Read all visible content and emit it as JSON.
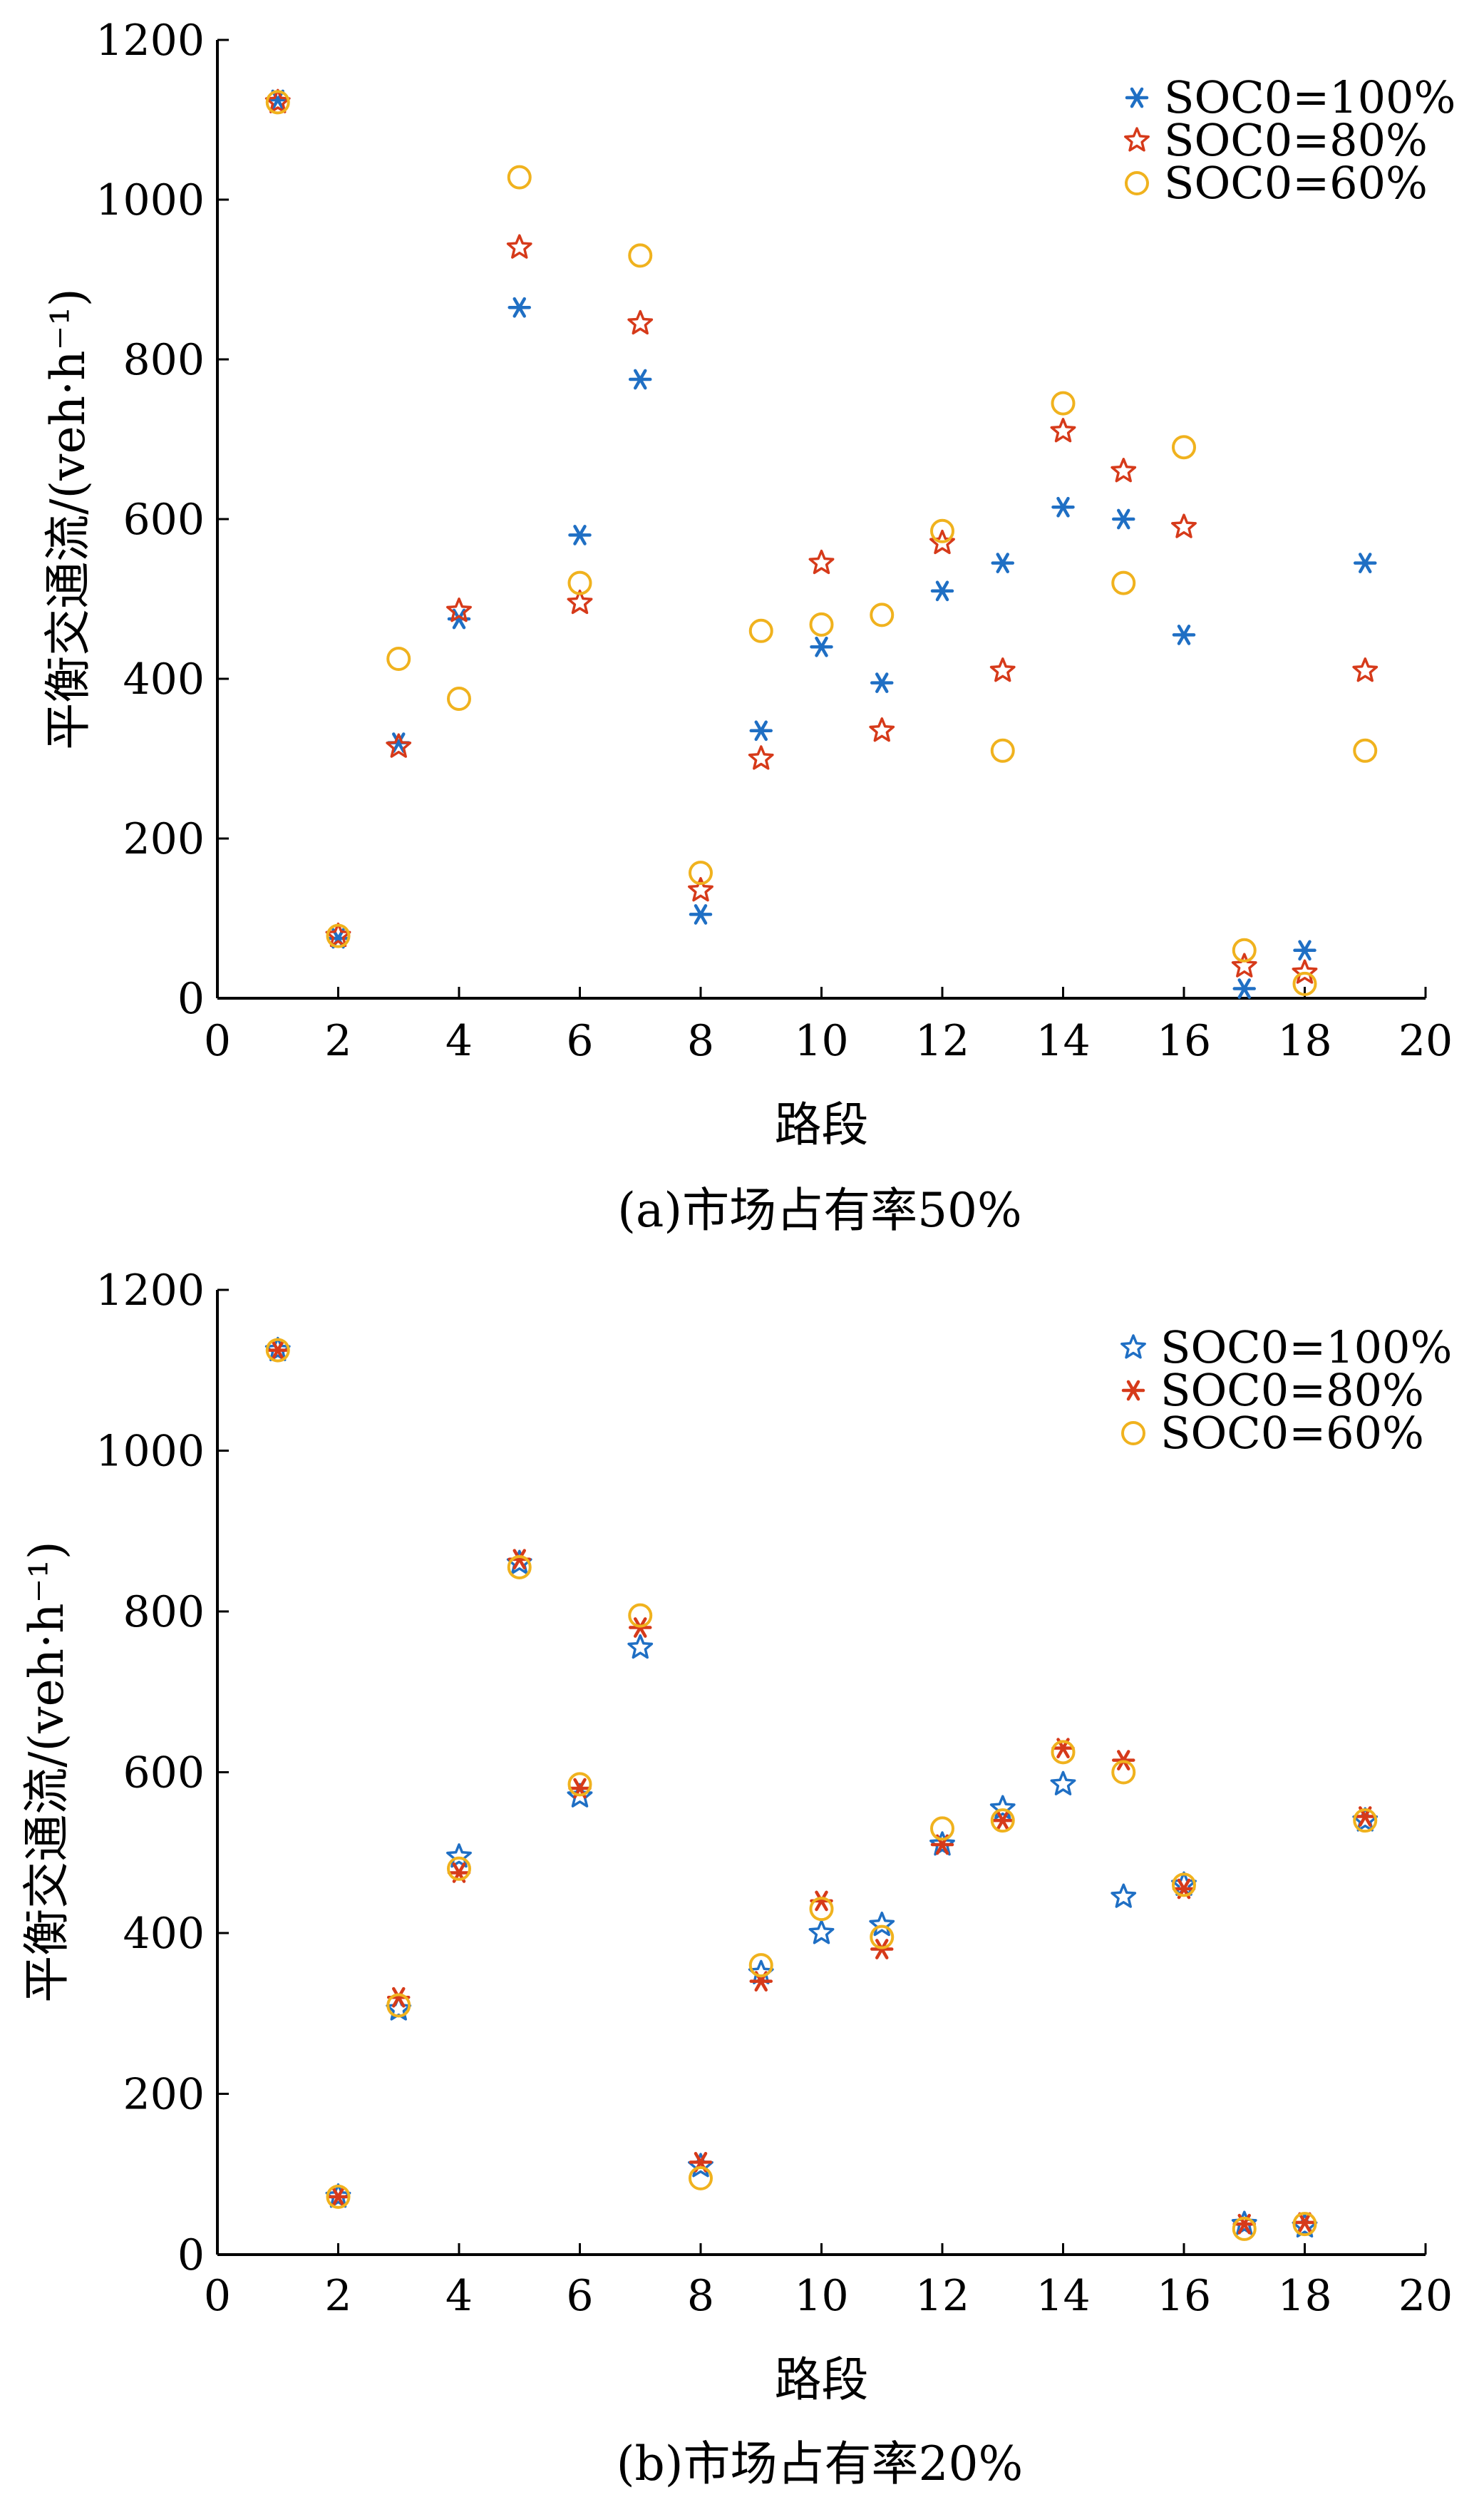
{
  "colors": {
    "blue": "#1f6fc4",
    "red": "#d63a1a",
    "orange": "#f0b21e",
    "axis": "#000000"
  },
  "chart_data": [
    {
      "type": "scatter",
      "caption": "(a)市场占有率50%",
      "xlabel": "路段",
      "ylabel": "平衡交通流/(veh·h⁻¹)",
      "xlim": [
        0,
        20
      ],
      "ylim": [
        0,
        1200
      ],
      "xticks": [
        "0",
        "2",
        "4",
        "6",
        "8",
        "10",
        "12",
        "14",
        "16",
        "18",
        "20"
      ],
      "yticks": [
        "0",
        "200",
        "400",
        "600",
        "800",
        "1000",
        "1200"
      ],
      "legend_position": "top-right",
      "x": [
        1,
        2,
        3,
        4,
        5,
        6,
        7,
        8,
        9,
        10,
        11,
        12,
        13,
        14,
        15,
        16,
        17,
        18,
        19
      ],
      "series": [
        {
          "name": "SOC0=100%",
          "marker": "asterisk",
          "color": "#1f6fc4",
          "values": [
            1125,
            75,
            320,
            475,
            865,
            580,
            775,
            105,
            335,
            440,
            395,
            510,
            545,
            615,
            600,
            455,
            12,
            60,
            545
          ]
        },
        {
          "name": "SOC0=80%",
          "marker": "star",
          "color": "#d63a1a",
          "values": [
            1122,
            78,
            315,
            485,
            940,
            495,
            845,
            135,
            300,
            545,
            335,
            570,
            410,
            710,
            660,
            590,
            40,
            32,
            410
          ]
        },
        {
          "name": "SOC0=60%",
          "marker": "circle",
          "color": "#f0b21e",
          "values": [
            1122,
            78,
            425,
            375,
            1028,
            520,
            930,
            157,
            460,
            468,
            480,
            585,
            310,
            745,
            520,
            690,
            60,
            18,
            310
          ]
        }
      ]
    },
    {
      "type": "scatter",
      "caption": "(b)市场占有率20%",
      "xlabel": "路段",
      "ylabel": "平衡交通流/(veh·h⁻¹)",
      "xlim": [
        0,
        20
      ],
      "ylim": [
        0,
        1200
      ],
      "xticks": [
        "0",
        "2",
        "4",
        "6",
        "8",
        "10",
        "12",
        "14",
        "16",
        "18",
        "20"
      ],
      "yticks": [
        "0",
        "200",
        "400",
        "600",
        "800",
        "1000",
        "1200"
      ],
      "legend_position": "top-right",
      "x": [
        1,
        2,
        3,
        4,
        5,
        6,
        7,
        8,
        9,
        10,
        11,
        12,
        13,
        14,
        15,
        16,
        17,
        18,
        19
      ],
      "series": [
        {
          "name": "SOC0=100%",
          "marker": "star",
          "color": "#1f6fc4",
          "values": [
            1125,
            72,
            305,
            495,
            860,
            570,
            755,
            110,
            350,
            400,
            410,
            510,
            555,
            585,
            445,
            460,
            38,
            35,
            540
          ]
        },
        {
          "name": "SOC0=80%",
          "marker": "asterisk",
          "color": "#d63a1a",
          "values": [
            1125,
            72,
            320,
            475,
            865,
            580,
            780,
            115,
            340,
            440,
            380,
            510,
            540,
            630,
            615,
            455,
            38,
            40,
            545
          ]
        },
        {
          "name": "SOC0=60%",
          "marker": "circle",
          "color": "#f0b21e",
          "values": [
            1125,
            72,
            310,
            480,
            855,
            585,
            795,
            95,
            360,
            430,
            395,
            530,
            540,
            625,
            600,
            460,
            32,
            38,
            540
          ]
        }
      ]
    }
  ]
}
